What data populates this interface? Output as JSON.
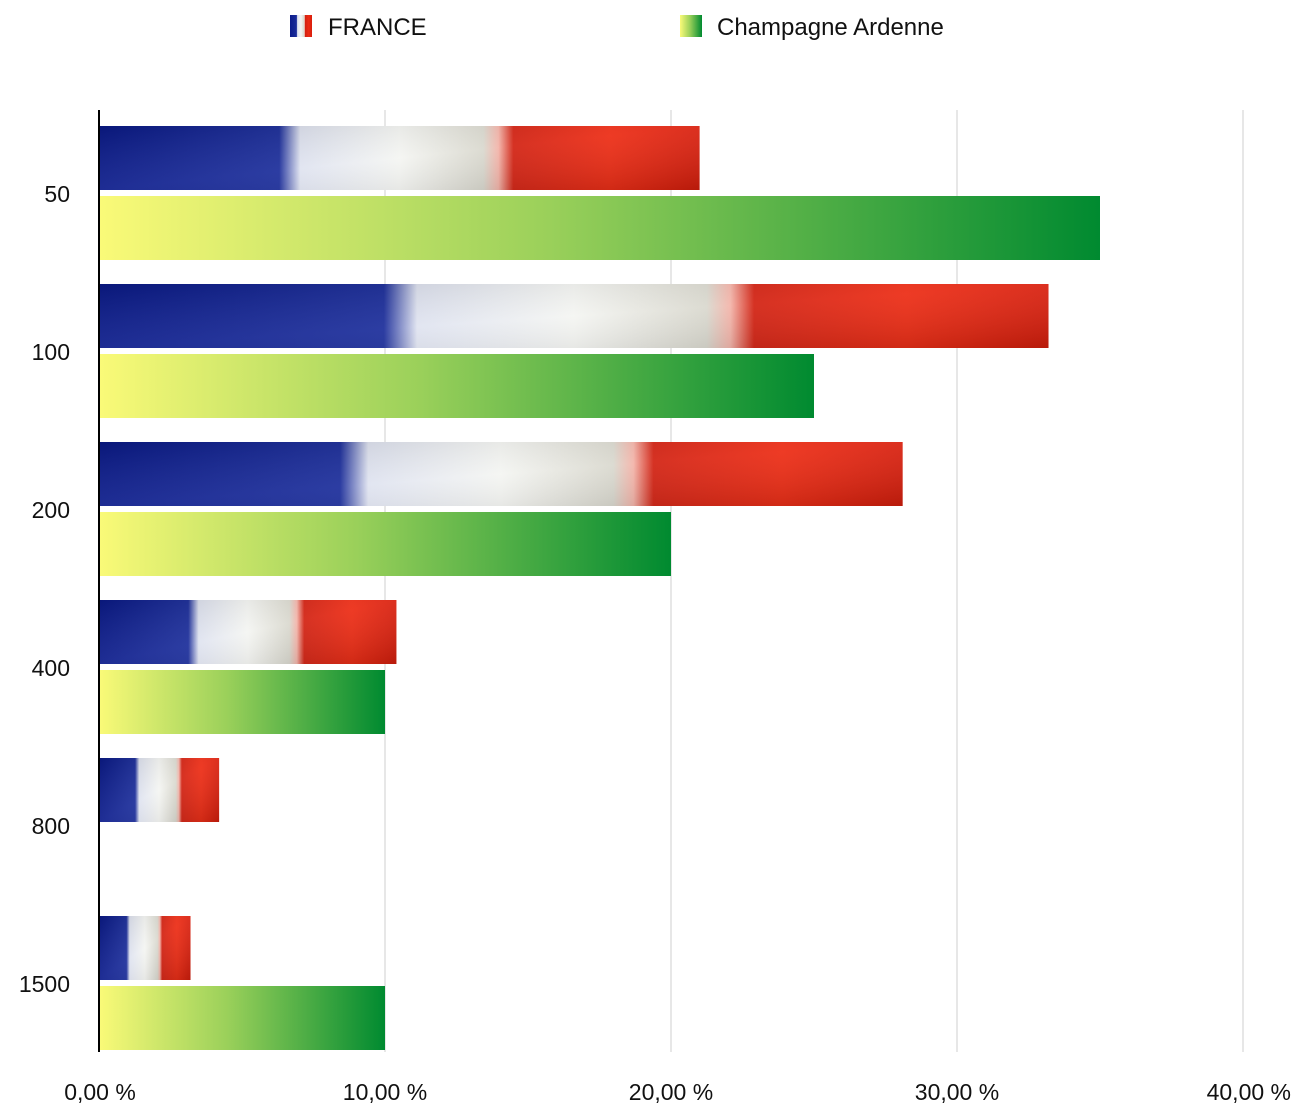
{
  "chart_data": {
    "type": "bar",
    "orientation": "horizontal",
    "categories": [
      "50",
      "100",
      "200",
      "400",
      "800",
      "1500"
    ],
    "series": [
      {
        "name": "FRANCE",
        "values": [
          21.0,
          33.2,
          28.1,
          10.4,
          4.2,
          3.2
        ]
      },
      {
        "name": "Champagne Ardenne",
        "values": [
          35.0,
          25.0,
          20.0,
          10.0,
          0,
          10.0
        ]
      }
    ],
    "xlim": [
      0,
      40
    ],
    "x_ticks": [
      "0,00 %",
      "10,00 %",
      "20,00 %",
      "30,00 %",
      "40,00 %"
    ],
    "grid": "vertical",
    "legend_position": "top"
  },
  "colors": {
    "france_blue": "#0a1a8a",
    "france_white": "#f2f4f2",
    "france_red": "#e02010",
    "champagne_start": "#fafa78",
    "champagne_mid": "#9ad05a",
    "champagne_end": "#008a30",
    "grid": "#cfcfcf",
    "axis": "#000000"
  }
}
